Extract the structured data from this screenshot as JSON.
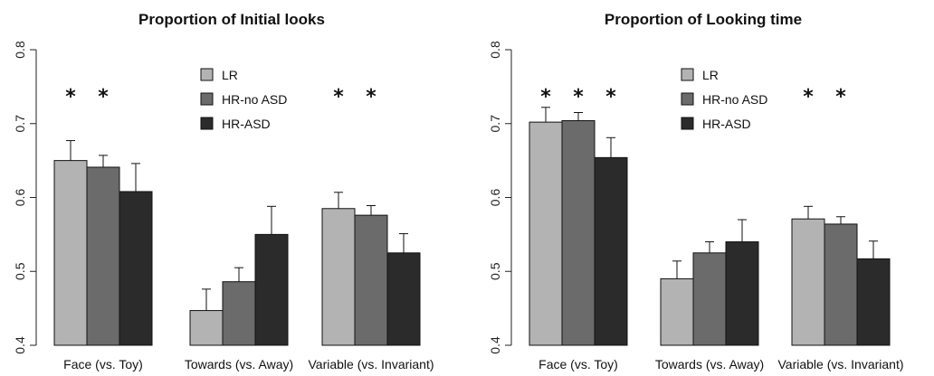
{
  "chart_data": [
    {
      "type": "bar",
      "title": "Proportion of Initial looks",
      "xlabel": "",
      "ylabel": "",
      "ylim": [
        0.4,
        0.8
      ],
      "yticks": [
        "0.4",
        "0.5",
        "0.6",
        "0.7",
        "0.8"
      ],
      "legend_position": "top-right",
      "categories": [
        "Face (vs. Toy)",
        "Towards (vs. Away)",
        "Variable (vs. Invariant)"
      ],
      "series": [
        {
          "name": "LR",
          "color": "#b3b3b3",
          "values": [
            0.65,
            0.447,
            0.585
          ],
          "errors": [
            0.027,
            0.029,
            0.022
          ]
        },
        {
          "name": "HR-no ASD",
          "color": "#6b6b6b",
          "values": [
            0.641,
            0.486,
            0.576
          ],
          "errors": [
            0.016,
            0.019,
            0.013
          ]
        },
        {
          "name": "HR-ASD",
          "color": "#2b2b2b",
          "values": [
            0.608,
            0.55,
            0.525
          ],
          "errors": [
            0.038,
            0.038,
            0.026
          ]
        }
      ],
      "annotations": [
        {
          "text": "*",
          "category": 0,
          "series": 0
        },
        {
          "text": "*",
          "category": 0,
          "series": 1
        },
        {
          "text": "*",
          "category": 2,
          "series": 0
        },
        {
          "text": "*",
          "category": 2,
          "series": 1
        }
      ]
    },
    {
      "type": "bar",
      "title": "Proportion of Looking time",
      "xlabel": "",
      "ylabel": "",
      "ylim": [
        0.4,
        0.8
      ],
      "yticks": [
        "0.4",
        "0.5",
        "0.6",
        "0.7",
        "0.8"
      ],
      "legend_position": "top-right",
      "categories": [
        "Face (vs. Toy)",
        "Towards (vs. Away)",
        "Variable (vs. Invariant)"
      ],
      "series": [
        {
          "name": "LR",
          "color": "#b3b3b3",
          "values": [
            0.702,
            0.49,
            0.571
          ],
          "errors": [
            0.02,
            0.024,
            0.017
          ]
        },
        {
          "name": "HR-no ASD",
          "color": "#6b6b6b",
          "values": [
            0.704,
            0.525,
            0.564
          ],
          "errors": [
            0.011,
            0.015,
            0.01
          ]
        },
        {
          "name": "HR-ASD",
          "color": "#2b2b2b",
          "values": [
            0.654,
            0.54,
            0.517
          ],
          "errors": [
            0.027,
            0.03,
            0.024
          ]
        }
      ],
      "annotations": [
        {
          "text": "*",
          "category": 0,
          "series": 0
        },
        {
          "text": "*",
          "category": 0,
          "series": 1
        },
        {
          "text": "*",
          "category": 0,
          "series": 2
        },
        {
          "text": "*",
          "category": 2,
          "series": 0
        },
        {
          "text": "*",
          "category": 2,
          "series": 1
        }
      ]
    }
  ]
}
